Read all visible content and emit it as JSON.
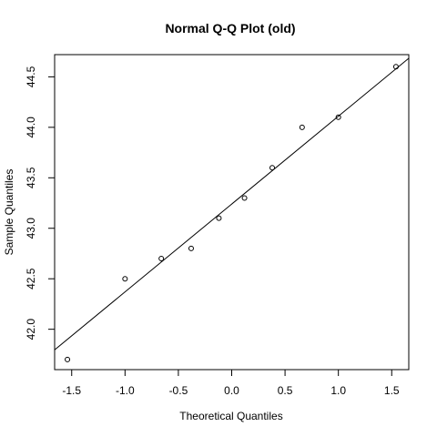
{
  "chart_data": {
    "type": "scatter",
    "title": "Normal Q-Q Plot (old)",
    "xlabel": "Theoretical Quantiles",
    "ylabel": "Sample Quantiles",
    "xlim": [
      -1.66,
      1.66
    ],
    "ylim": [
      41.6,
      44.72
    ],
    "x_ticks": [
      -1.5,
      -1.0,
      -0.5,
      0.0,
      0.5,
      1.0,
      1.5
    ],
    "x_tick_labels": [
      "-1.5",
      "-1.0",
      "-0.5",
      "0.0",
      "0.5",
      "1.0",
      "1.5"
    ],
    "y_ticks": [
      42.0,
      42.5,
      43.0,
      43.5,
      44.0,
      44.5
    ],
    "y_tick_labels": [
      "42.0",
      "42.5",
      "43.0",
      "43.5",
      "44.0",
      "44.5"
    ],
    "grid": false,
    "series": [
      {
        "x": [
          -1.54,
          -1.0,
          -0.66,
          -0.38,
          -0.12,
          0.12,
          0.38,
          0.66,
          1.0,
          1.54
        ],
        "y": [
          41.7,
          42.5,
          42.7,
          42.8,
          43.1,
          43.3,
          43.6,
          44.0,
          44.1,
          44.6
        ]
      }
    ],
    "reference_line": {
      "intercept": 43.24,
      "slope": 0.87
    }
  }
}
